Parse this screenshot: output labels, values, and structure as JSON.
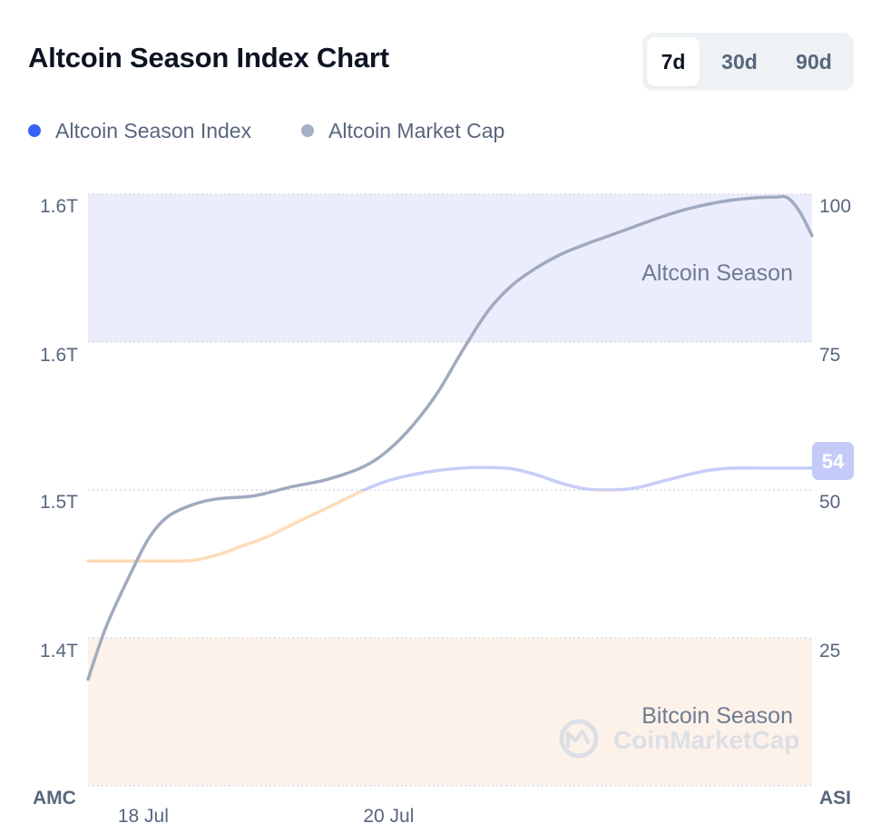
{
  "header": {
    "title": "Altcoin Season Index Chart",
    "ranges": [
      {
        "label": "7d",
        "active": true
      },
      {
        "label": "30d",
        "active": false
      },
      {
        "label": "90d",
        "active": false
      }
    ]
  },
  "legend": [
    {
      "label": "Altcoin Season Index",
      "color": "#3861fb"
    },
    {
      "label": "Altcoin Market Cap",
      "color": "#a6b0c3"
    }
  ],
  "colors": {
    "altcoin_zone": "#ebedfc",
    "bitcoin_zone": "#fdf2e9",
    "index_line_high": "#c6cdf8",
    "index_line_low": "#fddcb8",
    "market_cap_line": "#a0aabf",
    "badge": "#c4cbf8"
  },
  "chart_data": {
    "type": "line",
    "title": "Altcoin Season Index Chart",
    "left_axis_label": "AMC",
    "right_axis_label": "ASI",
    "left_ticks": [
      "1.6T",
      "1.6T",
      "1.5T",
      "1.4T"
    ],
    "right_ticks": [
      "100",
      "75",
      "50",
      "25"
    ],
    "x_ticks": [
      {
        "label": "18 Jul",
        "day": 18
      },
      {
        "label": "20 Jul",
        "day": 20
      }
    ],
    "x_range": [
      17.55,
      23.45
    ],
    "right_ylim": [
      0,
      100
    ],
    "zones": [
      {
        "label": "Altcoin Season",
        "from": 75,
        "to": 100
      },
      {
        "label": "Bitcoin Season",
        "from": 0,
        "to": 25
      }
    ],
    "current_index_badge": "54",
    "watermark": "CoinMarketCap",
    "series": [
      {
        "name": "Altcoin Season Index",
        "axis": "right",
        "x": [
          17.55,
          17.8,
          18.0,
          18.2,
          18.4,
          18.6,
          18.8,
          19.0,
          19.2,
          19.4,
          19.6,
          19.8,
          20.0,
          20.2,
          20.4,
          20.6,
          20.8,
          21.0,
          21.2,
          21.4,
          21.6,
          21.8,
          22.0,
          22.2,
          22.4,
          22.6,
          22.8,
          23.0,
          23.2,
          23.45
        ],
        "y": [
          38,
          38,
          38,
          38,
          38.1,
          39,
          40.5,
          42,
          44,
          46,
          48,
          50,
          51.6,
          52.6,
          53.3,
          53.7,
          53.8,
          53.6,
          52.6,
          51.2,
          50.2,
          50.0,
          50.3,
          51.3,
          52.4,
          53.3,
          53.7,
          53.7,
          53.7,
          53.7
        ]
      },
      {
        "name": "Altcoin Market Cap",
        "axis": "right",
        "x": [
          17.55,
          17.7,
          17.9,
          18.05,
          18.2,
          18.4,
          18.6,
          18.9,
          19.2,
          19.5,
          19.8,
          20.0,
          20.2,
          20.4,
          20.6,
          20.8,
          21.0,
          21.2,
          21.4,
          21.6,
          21.8,
          22.0,
          22.2,
          22.4,
          22.6,
          22.8,
          23.0,
          23.15,
          23.25,
          23.35,
          23.45
        ],
        "y": [
          18,
          27,
          36,
          42,
          45.5,
          47.5,
          48.5,
          49,
          50.5,
          51.8,
          54,
          56.8,
          61,
          66.5,
          73.5,
          80,
          84.5,
          87.5,
          89.8,
          91.5,
          93,
          94.5,
          96,
          97.3,
          98.3,
          99,
          99.4,
          99.5,
          99.4,
          97,
          93
        ]
      }
    ]
  }
}
